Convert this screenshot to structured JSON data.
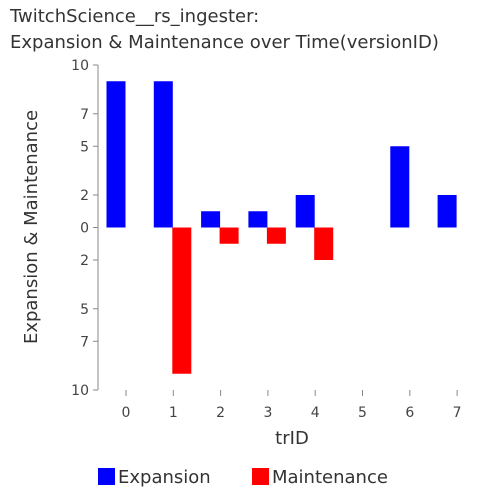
{
  "title_line1": "TwitchScience__rs_ingester:",
  "title_line2": "Expansion & Maintenance over Time(versionID)",
  "chart_data": {
    "type": "bar",
    "xlabel": "trID",
    "ylabel": "Expansion & Maintenance",
    "categories": [
      "0",
      "1",
      "2",
      "3",
      "4",
      "5",
      "6",
      "7"
    ],
    "ylim": [
      -10,
      10
    ],
    "y_ticks": [
      10,
      7,
      5,
      2,
      0,
      -2,
      -5,
      -7,
      -10
    ],
    "y_tick_labels": [
      "10",
      "7",
      "5",
      "2",
      "0",
      "2",
      "5",
      "7",
      "10"
    ],
    "series": [
      {
        "name": "Expansion",
        "color": "#0000ff",
        "values": [
          9,
          9,
          1,
          1,
          2,
          0,
          5,
          2
        ]
      },
      {
        "name": "Maintenance",
        "color": "#ff0000",
        "values": [
          0,
          -9,
          -1,
          -1,
          -2,
          0,
          0,
          0
        ]
      }
    ],
    "legend_position": "bottom"
  }
}
